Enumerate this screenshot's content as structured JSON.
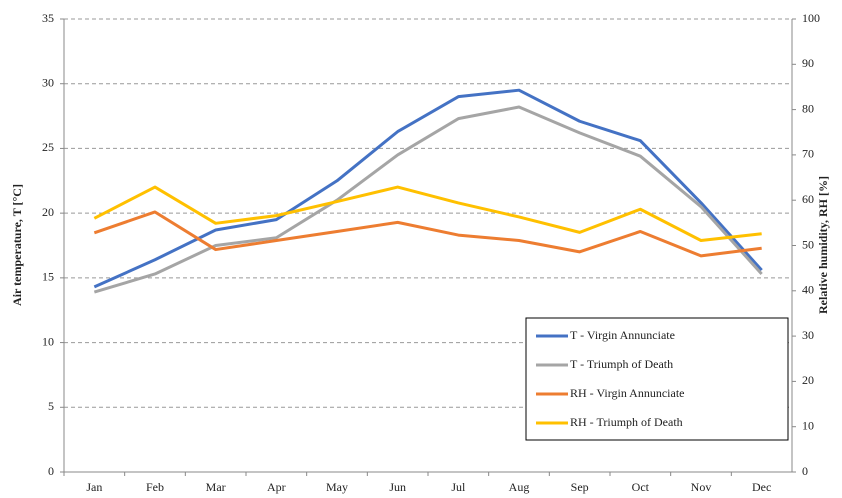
{
  "chart_data": {
    "type": "line",
    "y_label": "Air temperature, T [°C]",
    "y2_label": "Relative humidity, RH [%]",
    "categories": [
      "Jan",
      "Feb",
      "Mar",
      "Apr",
      "May",
      "Jun",
      "Jul",
      "Aug",
      "Sep",
      "Oct",
      "Nov",
      "Dec"
    ],
    "series": [
      {
        "name": "T - Virgin Annunciate",
        "color": "#4472c4",
        "axis": "y",
        "values": [
          14.3,
          16.4,
          18.7,
          19.5,
          22.5,
          26.3,
          29.0,
          29.5,
          27.1,
          25.6,
          20.8,
          15.6
        ]
      },
      {
        "name": "T - Triumph of Death",
        "color": "#a5a5a5",
        "axis": "y",
        "values": [
          13.9,
          15.3,
          17.5,
          18.1,
          21.0,
          24.5,
          27.3,
          28.2,
          26.2,
          24.4,
          20.5,
          15.3
        ]
      },
      {
        "name": "RH - Virgin Annunciate",
        "color": "#ed7d31",
        "axis": "y2",
        "values": [
          52.8,
          57.4,
          49.1,
          51.1,
          53.1,
          55.1,
          52.3,
          51.1,
          48.6,
          53.1,
          47.7,
          49.4
        ]
      },
      {
        "name": "RH - Triumph of Death",
        "color": "#ffc000",
        "axis": "y2",
        "values": [
          56.0,
          62.9,
          54.9,
          56.6,
          59.7,
          62.9,
          59.4,
          56.3,
          52.9,
          58.0,
          51.1,
          52.6
        ]
      }
    ],
    "ylim": [
      0,
      35
    ],
    "yticks": [
      0,
      5,
      10,
      15,
      20,
      25,
      30,
      35
    ],
    "y2lim": [
      0,
      100
    ],
    "y2ticks": [
      0,
      10,
      20,
      30,
      40,
      50,
      60,
      70,
      80,
      90,
      100
    ],
    "grid": true,
    "legend": "lower right"
  }
}
